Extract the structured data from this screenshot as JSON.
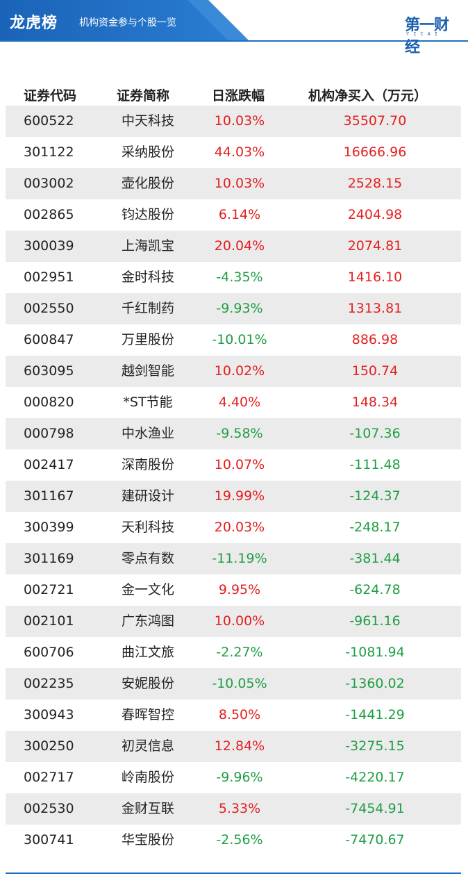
{
  "header": {
    "title": "龙虎榜",
    "subtitle": "机构资金参与个股一览",
    "logo_text": "第一财经",
    "logo_sub": "YICAI",
    "accent_color": "#1f6fc0"
  },
  "table": {
    "columns": [
      "证券代码",
      "证券简称",
      "日涨跌幅",
      "机构净买入（万元）"
    ],
    "rows": [
      {
        "code": "600522",
        "name": "中天科技",
        "change": "10.03%",
        "net": "35507.70"
      },
      {
        "code": "301122",
        "name": "采纳股份",
        "change": "44.03%",
        "net": "16666.96"
      },
      {
        "code": "003002",
        "name": "壶化股份",
        "change": "10.03%",
        "net": "2528.15"
      },
      {
        "code": "002865",
        "name": "钧达股份",
        "change": "6.14%",
        "net": "2404.98"
      },
      {
        "code": "300039",
        "name": "上海凯宝",
        "change": "20.04%",
        "net": "2074.81"
      },
      {
        "code": "002951",
        "name": "金时科技",
        "change": "-4.35%",
        "net": "1416.10"
      },
      {
        "code": "002550",
        "name": "千红制药",
        "change": "-9.93%",
        "net": "1313.81"
      },
      {
        "code": "600847",
        "name": "万里股份",
        "change": "-10.01%",
        "net": "886.98"
      },
      {
        "code": "603095",
        "name": "越剑智能",
        "change": "10.02%",
        "net": "150.74"
      },
      {
        "code": "000820",
        "name": "*ST节能",
        "change": "4.40%",
        "net": "148.34"
      },
      {
        "code": "000798",
        "name": "中水渔业",
        "change": "-9.58%",
        "net": "-107.36"
      },
      {
        "code": "002417",
        "name": "深南股份",
        "change": "10.07%",
        "net": "-111.48"
      },
      {
        "code": "301167",
        "name": "建研设计",
        "change": "19.99%",
        "net": "-124.37"
      },
      {
        "code": "300399",
        "name": "天利科技",
        "change": "20.03%",
        "net": "-248.17"
      },
      {
        "code": "301169",
        "name": "零点有数",
        "change": "-11.19%",
        "net": "-381.44"
      },
      {
        "code": "002721",
        "name": "金一文化",
        "change": "9.95%",
        "net": "-624.78"
      },
      {
        "code": "002101",
        "name": "广东鸿图",
        "change": "10.00%",
        "net": "-961.16"
      },
      {
        "code": "600706",
        "name": "曲江文旅",
        "change": "-2.27%",
        "net": "-1081.94"
      },
      {
        "code": "002235",
        "name": "安妮股份",
        "change": "-10.05%",
        "net": "-1360.02"
      },
      {
        "code": "300943",
        "name": "春晖智控",
        "change": "8.50%",
        "net": "-1441.29"
      },
      {
        "code": "300250",
        "name": "初灵信息",
        "change": "12.84%",
        "net": "-3275.15"
      },
      {
        "code": "002717",
        "name": "岭南股份",
        "change": "-9.96%",
        "net": "-4220.17"
      },
      {
        "code": "002530",
        "name": "金财互联",
        "change": "5.33%",
        "net": "-7454.91"
      },
      {
        "code": "300741",
        "name": "华宝股份",
        "change": "-2.56%",
        "net": "-7470.67"
      }
    ],
    "colors": {
      "up": "#e41f1f",
      "down": "#1e9e43",
      "shaded_row": "#ebebeb"
    }
  }
}
